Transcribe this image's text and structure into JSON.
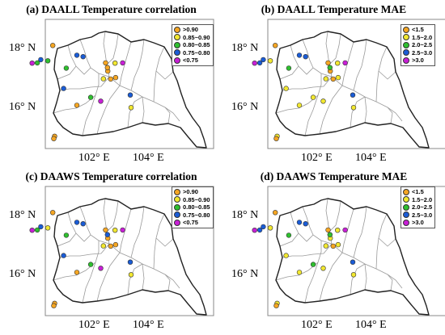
{
  "colors": {
    "orange": "#f5a623",
    "yellow": "#f2e830",
    "green": "#2fc02f",
    "blue": "#1a5cd6",
    "magenta": "#c81fd6",
    "boundary": "#9a9a9a",
    "outline": "#222222"
  },
  "lat_labels": [
    "18° N",
    "16° N"
  ],
  "lon_labels": [
    "102° E",
    "104° E"
  ],
  "panels": [
    {
      "id": "a",
      "title": "(a) DAALL Temperature correlation",
      "legend": [
        {
          "label": ">0.90",
          "color": "#f5a623"
        },
        {
          "label": "0.85~0.90",
          "color": "#f2e830"
        },
        {
          "label": "0.80~0.85",
          "color": "#2fc02f"
        },
        {
          "label": "0.75~0.80",
          "color": "#1a5cd6"
        },
        {
          "label": "<0.75",
          "color": "#c81fd6"
        }
      ]
    },
    {
      "id": "b",
      "title": "(b) DAALL Temperature MAE",
      "legend": [
        {
          "label": "<1.5",
          "color": "#f5a623"
        },
        {
          "label": "1.5~2.0",
          "color": "#f2e830"
        },
        {
          "label": "2.0~2.5",
          "color": "#2fc02f"
        },
        {
          "label": "2.5~3.0",
          "color": "#1a5cd6"
        },
        {
          "label": ">3.0",
          "color": "#c81fd6"
        }
      ]
    },
    {
      "id": "c",
      "title": "(c) DAAWS Temperature correlation",
      "legend": [
        {
          "label": ">0.90",
          "color": "#f5a623"
        },
        {
          "label": "0.85~0.90",
          "color": "#f2e830"
        },
        {
          "label": "0.80~0.85",
          "color": "#2fc02f"
        },
        {
          "label": "0.75~0.80",
          "color": "#1a5cd6"
        },
        {
          "label": "<0.75",
          "color": "#c81fd6"
        }
      ]
    },
    {
      "id": "d",
      "title": "(d) DAAWS Temperature MAE",
      "legend": [
        {
          "label": "<1.5",
          "color": "#f5a623"
        },
        {
          "label": "1.5~2.0",
          "color": "#f2e830"
        },
        {
          "label": "2.0~2.5",
          "color": "#2fc02f"
        },
        {
          "label": "2.5~3.0",
          "color": "#1a5cd6"
        },
        {
          "label": ">3.0",
          "color": "#c81fd6"
        }
      ]
    }
  ],
  "stations": {
    "a": [
      [
        "orange",
        101.93,
        18.21
      ],
      [
        "magenta",
        101.17,
        17.61
      ],
      [
        "green",
        101.36,
        17.62
      ],
      [
        "blue",
        101.49,
        17.73
      ],
      [
        "green",
        101.75,
        17.69
      ],
      [
        "green",
        102.43,
        17.44
      ],
      [
        "blue",
        102.82,
        17.88
      ],
      [
        "blue",
        103.05,
        17.83
      ],
      [
        "magenta",
        104.51,
        17.62
      ],
      [
        "orange",
        103.88,
        17.62
      ],
      [
        "orange",
        103.96,
        17.34
      ],
      [
        "yellow",
        103.8,
        17.08
      ],
      [
        "orange",
        104.07,
        17.07
      ],
      [
        "orange",
        104.25,
        17.12
      ],
      [
        "orange",
        103.95,
        17.46
      ],
      [
        "yellow",
        104.23,
        17.61
      ],
      [
        "blue",
        102.33,
        16.75
      ],
      [
        "green",
        103.33,
        16.45
      ],
      [
        "magenta",
        103.7,
        16.32
      ],
      [
        "orange",
        102.82,
        16.18
      ],
      [
        "blue",
        104.79,
        16.53
      ],
      [
        "yellow",
        104.82,
        16.1
      ],
      [
        "orange",
        102.0,
        15.13
      ],
      [
        "orange",
        101.97,
        15.05
      ]
    ],
    "b": [
      [
        "orange",
        101.93,
        18.21
      ],
      [
        "magenta",
        101.17,
        17.61
      ],
      [
        "blue",
        101.36,
        17.62
      ],
      [
        "blue",
        101.49,
        17.73
      ],
      [
        "yellow",
        101.75,
        17.69
      ],
      [
        "green",
        102.43,
        17.44
      ],
      [
        "blue",
        102.82,
        17.88
      ],
      [
        "blue",
        103.05,
        17.83
      ],
      [
        "magenta",
        104.51,
        17.62
      ],
      [
        "orange",
        103.88,
        17.62
      ],
      [
        "orange",
        103.96,
        17.34
      ],
      [
        "yellow",
        103.8,
        17.08
      ],
      [
        "orange",
        104.07,
        17.07
      ],
      [
        "yellow",
        104.25,
        17.12
      ],
      [
        "green",
        103.95,
        17.46
      ],
      [
        "yellow",
        104.23,
        17.61
      ],
      [
        "yellow",
        102.33,
        16.75
      ],
      [
        "yellow",
        103.33,
        16.45
      ],
      [
        "yellow",
        103.7,
        16.32
      ],
      [
        "yellow",
        102.82,
        16.18
      ],
      [
        "blue",
        104.79,
        16.53
      ],
      [
        "yellow",
        104.82,
        16.1
      ],
      [
        "yellow",
        102.0,
        15.13
      ],
      [
        "orange",
        101.97,
        15.05
      ]
    ],
    "c": [
      [
        "orange",
        101.93,
        18.21
      ],
      [
        "magenta",
        101.17,
        17.61
      ],
      [
        "green",
        101.36,
        17.62
      ],
      [
        "blue",
        101.49,
        17.73
      ],
      [
        "yellow",
        101.75,
        17.69
      ],
      [
        "green",
        102.43,
        17.44
      ],
      [
        "blue",
        102.82,
        17.88
      ],
      [
        "blue",
        103.05,
        17.83
      ],
      [
        "magenta",
        104.51,
        17.62
      ],
      [
        "orange",
        103.88,
        17.62
      ],
      [
        "orange",
        103.96,
        17.34
      ],
      [
        "yellow",
        103.8,
        17.08
      ],
      [
        "orange",
        104.07,
        17.07
      ],
      [
        "orange",
        104.25,
        17.12
      ],
      [
        "blue",
        103.95,
        17.46
      ],
      [
        "yellow",
        104.23,
        17.61
      ],
      [
        "blue",
        102.33,
        16.75
      ],
      [
        "green",
        103.33,
        16.45
      ],
      [
        "magenta",
        103.7,
        16.32
      ],
      [
        "orange",
        102.82,
        16.18
      ],
      [
        "blue",
        104.79,
        16.53
      ],
      [
        "yellow",
        104.82,
        16.1
      ],
      [
        "orange",
        102.0,
        15.13
      ],
      [
        "orange",
        101.97,
        15.05
      ]
    ],
    "d": [
      [
        "orange",
        101.93,
        18.21
      ],
      [
        "magenta",
        101.17,
        17.61
      ],
      [
        "blue",
        101.36,
        17.62
      ],
      [
        "blue",
        101.49,
        17.73
      ],
      [
        "yellow",
        101.75,
        17.69
      ],
      [
        "green",
        102.43,
        17.44
      ],
      [
        "blue",
        102.82,
        17.88
      ],
      [
        "blue",
        103.05,
        17.83
      ],
      [
        "magenta",
        104.51,
        17.62
      ],
      [
        "orange",
        103.88,
        17.62
      ],
      [
        "yellow",
        103.96,
        17.34
      ],
      [
        "yellow",
        103.8,
        17.08
      ],
      [
        "orange",
        104.07,
        17.07
      ],
      [
        "yellow",
        104.25,
        17.12
      ],
      [
        "green",
        103.95,
        17.46
      ],
      [
        "yellow",
        104.23,
        17.61
      ],
      [
        "yellow",
        102.33,
        16.75
      ],
      [
        "green",
        103.33,
        16.45
      ],
      [
        "yellow",
        103.7,
        16.32
      ],
      [
        "yellow",
        102.82,
        16.18
      ],
      [
        "blue",
        104.79,
        16.53
      ],
      [
        "yellow",
        104.82,
        16.1
      ],
      [
        "yellow",
        102.0,
        15.13
      ],
      [
        "orange",
        101.97,
        15.05
      ]
    ]
  }
}
